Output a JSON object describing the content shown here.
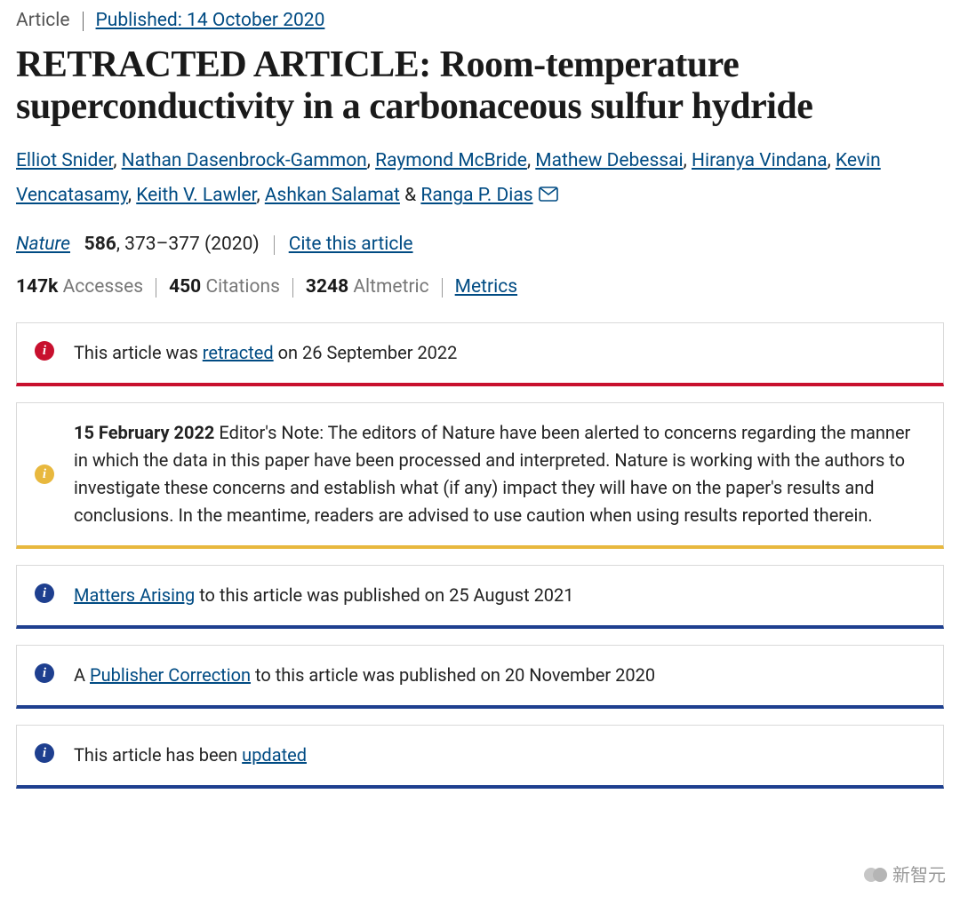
{
  "header": {
    "article_type": "Article",
    "published_label": "Published: 14 October 2020"
  },
  "title": "RETRACTED ARTICLE: Room-temperature superconductivity in a carbonaceous sulfur hydride",
  "authors": [
    "Elliot Snider",
    "Nathan Dasenbrock-Gammon",
    "Raymond McBride",
    "Mathew Debessai",
    "Hiranya Vindana",
    "Kevin Vencatasamy",
    "Keith V. Lawler",
    "Ashkan Salamat",
    "Ranga P. Dias"
  ],
  "corresponding_author_index": 8,
  "journal": {
    "name": "Nature",
    "volume": "586",
    "pages": "373–377",
    "year": "(2020)",
    "cite_label": "Cite this article"
  },
  "metrics": {
    "accesses_value": "147k",
    "accesses_label": "Accesses",
    "citations_value": "450",
    "citations_label": "Citations",
    "altmetric_value": "3248",
    "altmetric_label": "Altmetric",
    "metrics_link": "Metrics"
  },
  "notices": [
    {
      "severity": "red",
      "prefix": "This article was ",
      "link_text": "retracted",
      "suffix": " on 26 September 2022"
    },
    {
      "severity": "yellow",
      "bold_prefix": "15 February 2022",
      "prefix": " Editor's Note: The editors of Nature have been alerted to concerns regarding the manner in which the data in this paper have been processed and interpreted. Nature is working with the authors to investigate these concerns and establish what (if any) impact they will have on the paper's results and conclusions. In the meantime, readers are advised to use caution when using results reported therein.",
      "link_text": "",
      "suffix": ""
    },
    {
      "severity": "blue",
      "prefix": "",
      "link_text": "Matters Arising",
      "suffix": " to this article was published on 25 August 2021"
    },
    {
      "severity": "blue",
      "prefix": "A ",
      "link_text": "Publisher Correction",
      "suffix": " to this article was published on 20 November 2020"
    },
    {
      "severity": "blue",
      "prefix": "This article has been ",
      "link_text": "updated",
      "suffix": ""
    }
  ],
  "watermark": {
    "text": "新智元"
  },
  "colors": {
    "link": "#004b83",
    "red": "#c8102e",
    "yellow": "#e8b83e",
    "blue": "#1e3f8f",
    "border": "#d9d9d9",
    "text": "#222222",
    "muted": "#777777"
  }
}
